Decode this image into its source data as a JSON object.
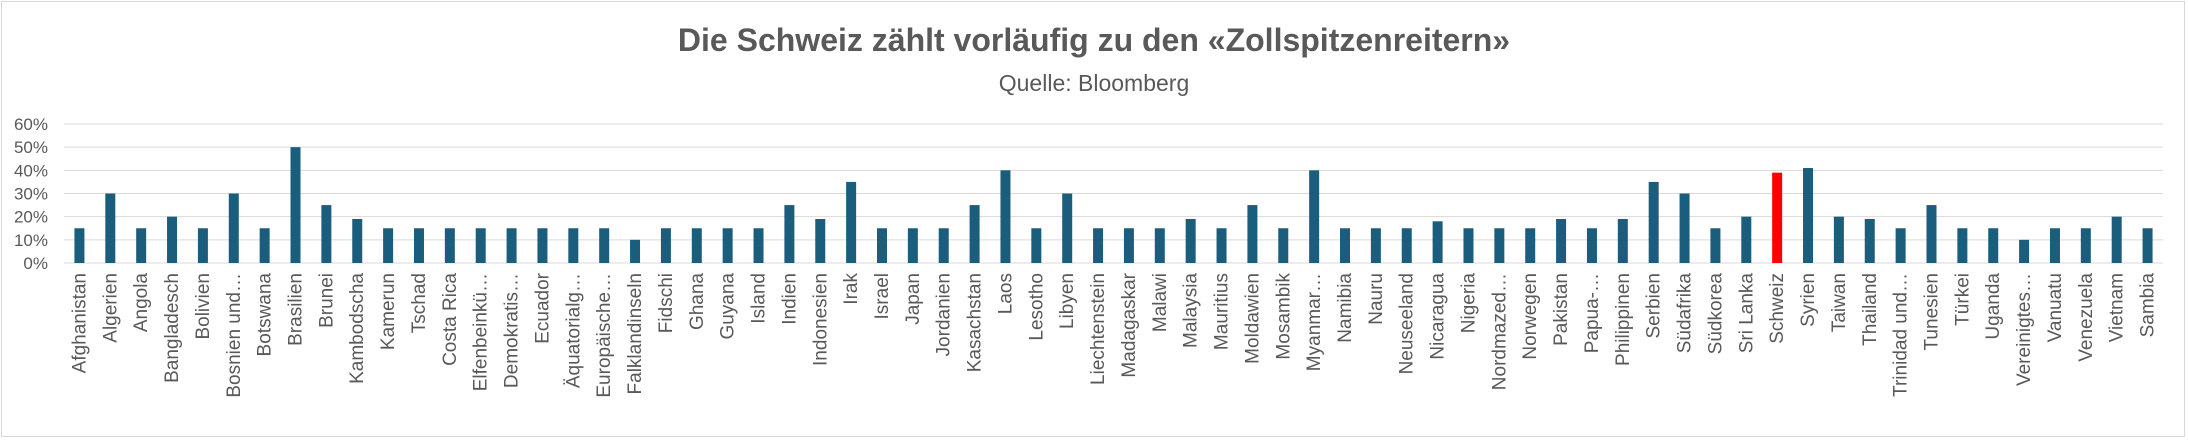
{
  "chart_data": {
    "type": "bar",
    "title": "Die Schweiz zählt vorläufig zu den «Zollspitzenreitern»",
    "subtitle": "Quelle: Bloomberg",
    "xlabel": "",
    "ylabel": "",
    "ylim": [
      0,
      60
    ],
    "yticks": [
      "0%",
      "10%",
      "20%",
      "30%",
      "40%",
      "50%",
      "60%"
    ],
    "grid": true,
    "colors": {
      "default": "#1b5d7d",
      "highlight": "#ff0000",
      "grid": "#d9d9d9",
      "text": "#595959"
    },
    "highlight": "Schweiz",
    "categories": [
      "Afghanistan",
      "Algerien",
      "Angola",
      "Bangladesch",
      "Bolivien",
      "Bosnien und…",
      "Botswana",
      "Brasilien",
      "Brunei",
      "Kambodscha",
      "Kamerun",
      "Tschad",
      "Costa Rica",
      "Elfenbeinkü…",
      "Demokratis…",
      "Ecuador",
      "Äquatorialg…",
      "Europäische…",
      "Falklandinseln",
      "Fidschi",
      "Ghana",
      "Guyana",
      "Island",
      "Indien",
      "Indonesien",
      "Irak",
      "Israel",
      "Japan",
      "Jordanien",
      "Kasachstan",
      "Laos",
      "Lesotho",
      "Libyen",
      "Liechtenstein",
      "Madagaskar",
      "Malawi",
      "Malaysia",
      "Mauritius",
      "Moldawien",
      "Mosambik",
      "Myanmar…",
      "Namibia",
      "Nauru",
      "Neuseeland",
      "Nicaragua",
      "Nigeria",
      "Nordmazed…",
      "Norwegen",
      "Pakistan",
      "Papua-…",
      "Philippinen",
      "Serbien",
      "Südafrika",
      "Südkorea",
      "Sri Lanka",
      "Schweiz",
      "Syrien",
      "Taiwan",
      "Thailand",
      "Trinidad und…",
      "Tunesien",
      "Türkei",
      "Uganda",
      "Vereinigtes…",
      "Vanuatu",
      "Venezuela",
      "Vietnam",
      "Sambia"
    ],
    "values": [
      15,
      30,
      15,
      20,
      15,
      30,
      15,
      50,
      25,
      19,
      15,
      15,
      15,
      15,
      15,
      15,
      15,
      15,
      10,
      15,
      15,
      15,
      15,
      25,
      19,
      35,
      15,
      15,
      15,
      25,
      40,
      15,
      30,
      15,
      15,
      15,
      19,
      15,
      25,
      15,
      40,
      15,
      15,
      15,
      18,
      15,
      15,
      15,
      19,
      15,
      19,
      35,
      30,
      15,
      20,
      39,
      41,
      20,
      19,
      15,
      25,
      15,
      15,
      10,
      15,
      15,
      20,
      15
    ]
  }
}
